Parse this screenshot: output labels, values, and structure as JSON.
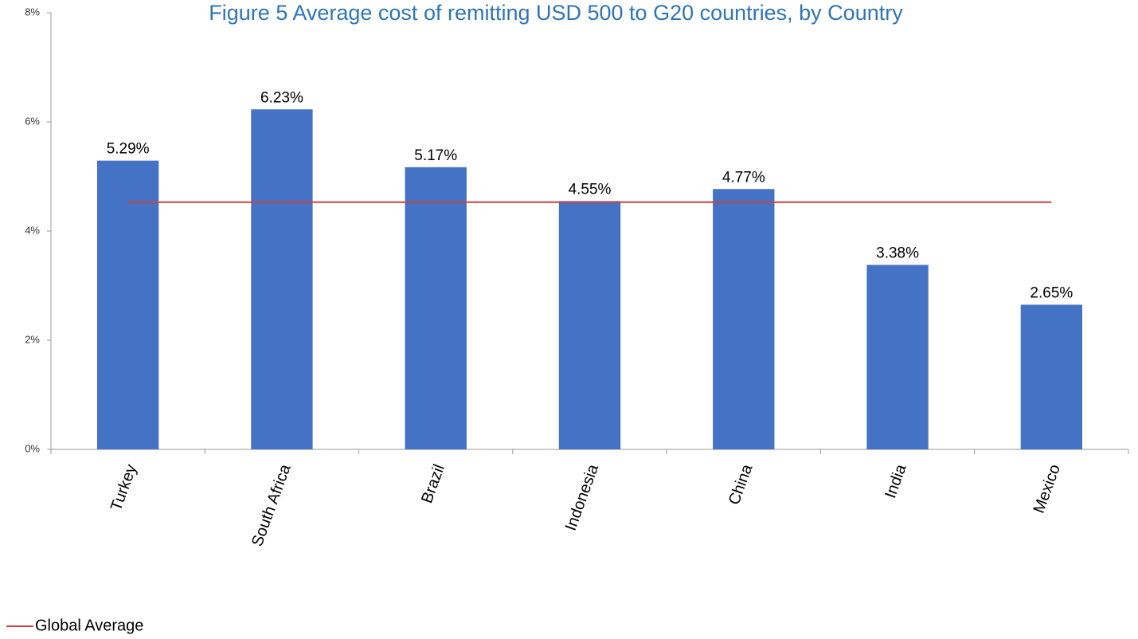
{
  "chart_data": {
    "type": "bar",
    "title": "Figure 5 Average cost of remitting USD 500 to G20 countries, by Country",
    "categories": [
      "Turkey",
      "South Africa",
      "Brazil",
      "Indonesia",
      "China",
      "India",
      "Mexico"
    ],
    "series": [
      {
        "type": "bar",
        "color": "#4472c4",
        "values": [
          5.29,
          6.23,
          5.17,
          4.55,
          4.77,
          3.38,
          2.65
        ],
        "value_labels": [
          "5.29%",
          "6.23%",
          "5.17%",
          "4.55%",
          "4.77%",
          "3.38%",
          "2.65%"
        ]
      },
      {
        "type": "line",
        "name": "Global Average",
        "color": "#d0413e",
        "values": [
          4.53,
          4.53,
          4.53,
          4.53,
          4.53,
          4.53,
          4.53
        ]
      }
    ],
    "ylim": [
      0,
      8
    ],
    "yticks": [
      {
        "value": 0,
        "label": "0%"
      },
      {
        "value": 2,
        "label": "2%"
      },
      {
        "value": 4,
        "label": "4%"
      },
      {
        "value": 6,
        "label": "6%"
      },
      {
        "value": 8,
        "label": "8%"
      }
    ],
    "grid": false,
    "legend": "bottom-left"
  }
}
